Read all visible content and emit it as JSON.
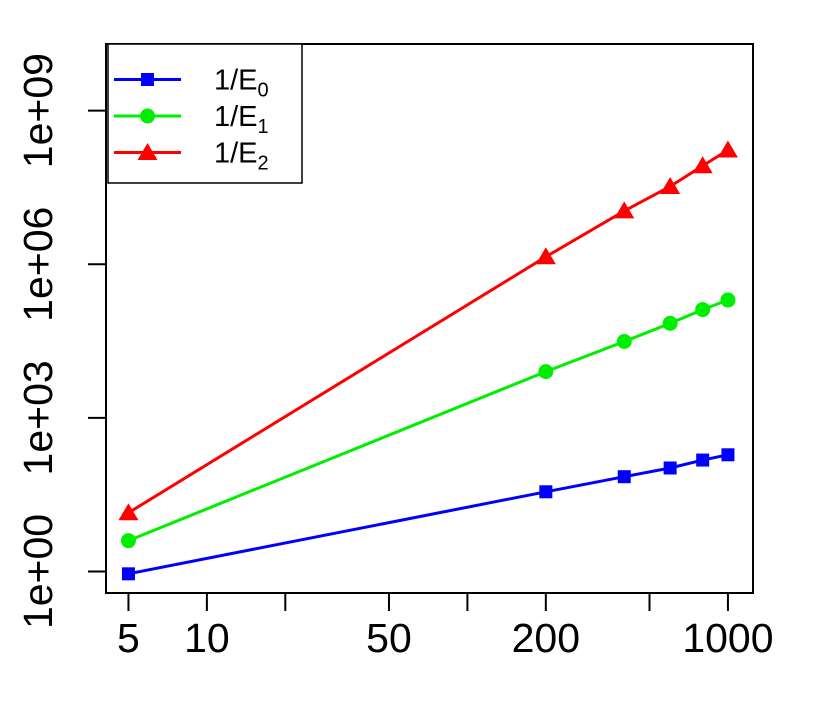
{
  "figure": {
    "description": "Log-log convergence plot of inverse error measures versus N",
    "background": "#ffffff",
    "axis_color": "#000000"
  },
  "chart_data": {
    "type": "line",
    "title": "",
    "xlabel": "",
    "ylabel": "",
    "x_scale": "log",
    "y_scale": "log",
    "grid": false,
    "x_range": [
      4.1,
      1248
    ],
    "y_range": [
      0.38,
      20000000000
    ],
    "x": [
      5,
      200,
      400,
      600,
      800,
      1000
    ],
    "series": [
      {
        "name": "1/E0",
        "legend_base": "1/E",
        "legend_sub": "0",
        "color": "#0000ff",
        "marker": "square",
        "values": [
          0.9,
          36,
          71,
          105,
          150,
          190
        ]
      },
      {
        "name": "1/E1",
        "legend_base": "1/E",
        "legend_sub": "1",
        "color": "#00ee00",
        "marker": "circle",
        "values": [
          4,
          8000,
          31000,
          70000,
          130000,
          200000
        ]
      },
      {
        "name": "1/E2",
        "legend_base": "1/E",
        "legend_sub": "2",
        "color": "#ff0000",
        "marker": "triangle",
        "values": [
          14,
          1400000,
          11000000,
          33000000,
          84000000,
          170000000
        ]
      }
    ],
    "x_ticks": [
      {
        "v": 5,
        "label": "5"
      },
      {
        "v": 10,
        "label": "10"
      },
      {
        "v": 20,
        "label": ""
      },
      {
        "v": 50,
        "label": "50"
      },
      {
        "v": 100,
        "label": ""
      },
      {
        "v": 200,
        "label": "200"
      },
      {
        "v": 500,
        "label": ""
      },
      {
        "v": 1000,
        "label": "1000"
      }
    ],
    "y_ticks": [
      {
        "v": 1,
        "label": "1e+00"
      },
      {
        "v": 1000,
        "label": "1e+03"
      },
      {
        "v": 1000000,
        "label": "1e+06"
      },
      {
        "v": 1000000000,
        "label": "1e+09"
      }
    ],
    "legend_position": "top-left"
  }
}
